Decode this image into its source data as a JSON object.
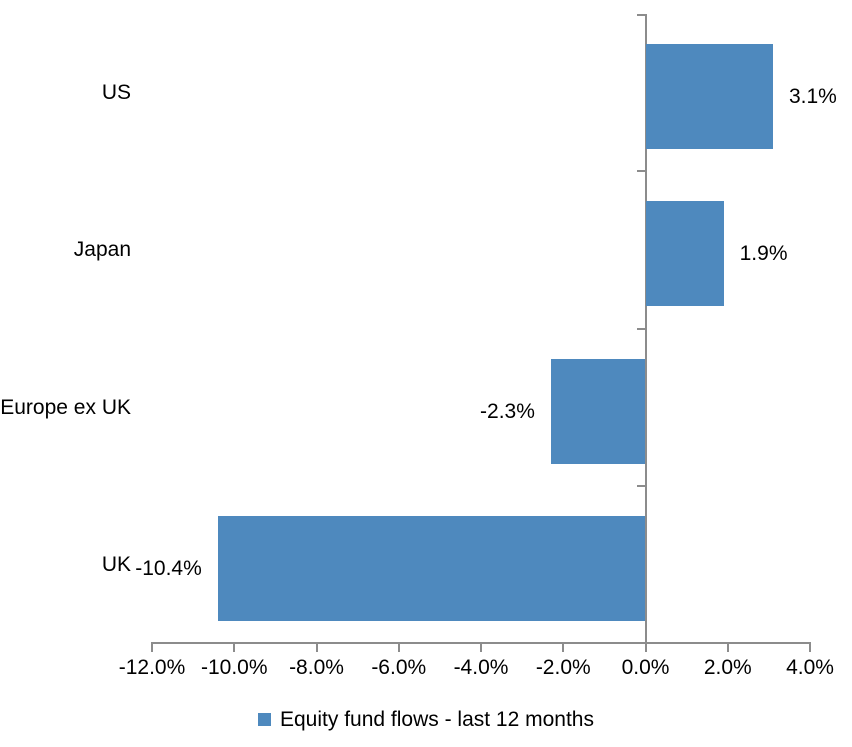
{
  "chart_data": {
    "type": "bar",
    "orientation": "horizontal",
    "title": "",
    "xlabel": "",
    "ylabel": "",
    "categories": [
      "US",
      "Japan",
      "Europe ex UK",
      "UK"
    ],
    "series": [
      {
        "name": "Equity fund flows - last 12 months",
        "values": [
          3.1,
          1.9,
          -2.3,
          -10.4
        ],
        "labels": [
          "3.1%",
          "1.9%",
          "-2.3%",
          "-10.4%"
        ],
        "color": "#4E89BE"
      }
    ],
    "xlim": [
      -12,
      4
    ],
    "x_ticks": [
      -12,
      -10,
      -8,
      -6,
      -4,
      -2,
      0,
      2,
      4
    ],
    "x_tick_labels": [
      "-12.0%",
      "-10.0%",
      "-8.0%",
      "-6.0%",
      "-4.0%",
      "-2.0%",
      "0.0%",
      "2.0%",
      "4.0%"
    ],
    "grid": false,
    "legend_position": "bottom",
    "colors": {
      "bar": "#4E89BE",
      "axis": "#8C8C8C",
      "text": "#000000",
      "background": "#FFFFFF"
    }
  }
}
